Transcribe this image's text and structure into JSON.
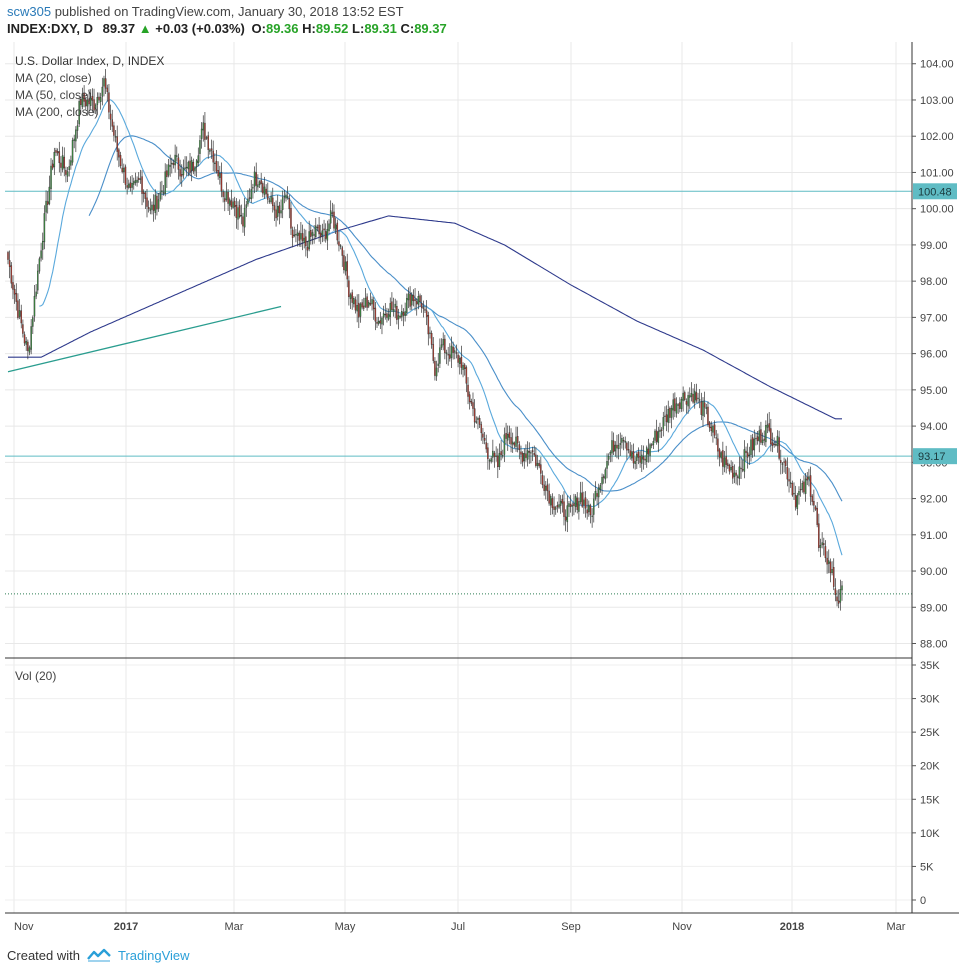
{
  "header": {
    "user": "scw305",
    "published": " published on TradingView.com, January 30, 2018 13:52 EST",
    "symbol": "INDEX:DXY, D",
    "price": "89.37",
    "change": "+0.03 (+0.03%)",
    "o_label": "O:",
    "o": "89.36",
    "h_label": "H:",
    "h": "89.52",
    "l_label": "L:",
    "l": "89.31",
    "c_label": "C:",
    "c": "89.37"
  },
  "legend": {
    "title": "U.S. Dollar Index, D, INDEX",
    "ma20": "MA (20, close)",
    "ma50": "MA (50, close)",
    "ma200": "MA (200, close)",
    "volume": "Vol (20)"
  },
  "footer": {
    "created": "Created with",
    "brand": "TradingView"
  },
  "colors": {
    "up": "#3f9b45",
    "down": "#c0392b",
    "ma20": "#5aa9dc",
    "ma50": "#4a8fc9",
    "ma200": "#2e3a8c",
    "hline": "#5fbcc4",
    "trend": "#2a9d8f",
    "last": "#2e7d54"
  },
  "chart_data": [
    {
      "type": "candlestick",
      "title": "U.S. Dollar Index, D, INDEX",
      "ylim": [
        87.6,
        104.6
      ],
      "x_ticks": [
        "Nov",
        "2017",
        "Mar",
        "May",
        "Jul",
        "Sep",
        "Nov",
        "2018",
        "Mar"
      ],
      "y_ticks": [
        "88.00",
        "89.00",
        "90.00",
        "91.00",
        "92.00",
        "93.00",
        "94.00",
        "95.00",
        "96.00",
        "97.00",
        "98.00",
        "99.00",
        "100.00",
        "101.00",
        "102.00",
        "103.00",
        "104.00"
      ],
      "horizontal_lines": [
        {
          "value": 100.48,
          "label": "100.48"
        },
        {
          "value": 93.17,
          "label": "93.17"
        }
      ],
      "last_price": 89.37,
      "series": [
        {
          "name": "MA (20, close)",
          "values": []
        },
        {
          "name": "MA (50, close)",
          "values": []
        },
        {
          "name": "MA (200, close)",
          "values": []
        }
      ],
      "close_keypoints": [
        [
          0,
          98.6
        ],
        [
          6,
          97.2
        ],
        [
          12,
          96.0
        ],
        [
          20,
          99.0
        ],
        [
          28,
          101.6
        ],
        [
          36,
          101.0
        ],
        [
          44,
          103.0
        ],
        [
          52,
          102.9
        ],
        [
          58,
          103.5
        ],
        [
          62,
          102.5
        ],
        [
          66,
          101.6
        ],
        [
          74,
          100.4
        ],
        [
          80,
          100.8
        ],
        [
          86,
          99.9
        ],
        [
          92,
          100.4
        ],
        [
          100,
          101.4
        ],
        [
          106,
          101.0
        ],
        [
          112,
          101.2
        ],
        [
          118,
          102.2
        ],
        [
          124,
          101.5
        ],
        [
          130,
          100.5
        ],
        [
          136,
          100.2
        ],
        [
          142,
          99.6
        ],
        [
          148,
          100.8
        ],
        [
          152,
          100.9
        ],
        [
          158,
          100.2
        ],
        [
          164,
          99.8
        ],
        [
          168,
          100.4
        ],
        [
          172,
          99.2
        ],
        [
          180,
          99.0
        ],
        [
          186,
          99.4
        ],
        [
          190,
          99.2
        ],
        [
          196,
          99.8
        ],
        [
          202,
          98.8
        ],
        [
          206,
          97.8
        ],
        [
          212,
          97.1
        ],
        [
          218,
          97.5
        ],
        [
          224,
          96.9
        ],
        [
          230,
          97.3
        ],
        [
          236,
          97.1
        ],
        [
          244,
          97.6
        ],
        [
          250,
          97.4
        ],
        [
          254,
          96.6
        ],
        [
          258,
          95.6
        ],
        [
          262,
          96.2
        ],
        [
          268,
          96.0
        ],
        [
          274,
          95.8
        ],
        [
          278,
          94.9
        ],
        [
          282,
          94.3
        ],
        [
          286,
          93.8
        ],
        [
          290,
          93.3
        ],
        [
          296,
          92.9
        ],
        [
          302,
          93.9
        ],
        [
          310,
          93.2
        ],
        [
          316,
          93.4
        ],
        [
          322,
          92.7
        ],
        [
          328,
          92.0
        ],
        [
          334,
          91.7
        ],
        [
          340,
          91.6
        ],
        [
          346,
          92.1
        ],
        [
          352,
          91.5
        ],
        [
          356,
          92.3
        ],
        [
          360,
          92.8
        ],
        [
          366,
          93.5
        ],
        [
          372,
          93.8
        ],
        [
          378,
          93.0
        ],
        [
          384,
          93.1
        ],
        [
          390,
          93.6
        ],
        [
          396,
          94.1
        ],
        [
          402,
          94.6
        ],
        [
          408,
          94.8
        ],
        [
          414,
          94.9
        ],
        [
          418,
          94.6
        ],
        [
          422,
          94.3
        ],
        [
          426,
          93.8
        ],
        [
          430,
          93.2
        ],
        [
          434,
          92.9
        ],
        [
          440,
          92.7
        ],
        [
          446,
          93.2
        ],
        [
          452,
          93.6
        ],
        [
          458,
          93.9
        ],
        [
          464,
          93.6
        ],
        [
          468,
          93.1
        ],
        [
          472,
          92.6
        ],
        [
          476,
          92.0
        ],
        [
          480,
          92.2
        ],
        [
          484,
          92.5
        ],
        [
          488,
          91.7
        ],
        [
          490,
          90.6
        ],
        [
          494,
          90.5
        ],
        [
          498,
          89.9
        ],
        [
          500,
          89.4
        ],
        [
          502,
          89.2
        ],
        [
          504,
          89.37
        ]
      ],
      "ma200_keypoints": [
        [
          0,
          95.9
        ],
        [
          20,
          95.9
        ],
        [
          50,
          96.6
        ],
        [
          100,
          97.6
        ],
        [
          150,
          98.6
        ],
        [
          200,
          99.4
        ],
        [
          230,
          99.8
        ],
        [
          270,
          99.6
        ],
        [
          300,
          99.0
        ],
        [
          340,
          97.9
        ],
        [
          380,
          96.9
        ],
        [
          420,
          96.1
        ],
        [
          460,
          95.1
        ],
        [
          500,
          94.2
        ]
      ],
      "trendline": [
        [
          0,
          95.5
        ],
        [
          165,
          97.3
        ]
      ]
    },
    {
      "type": "bar",
      "title": "Vol (20)",
      "ylim": [
        0,
        35000
      ],
      "y_ticks": [
        "35K",
        "30K",
        "25K",
        "20K",
        "15K",
        "10K",
        "5K",
        "0"
      ],
      "values": []
    }
  ]
}
